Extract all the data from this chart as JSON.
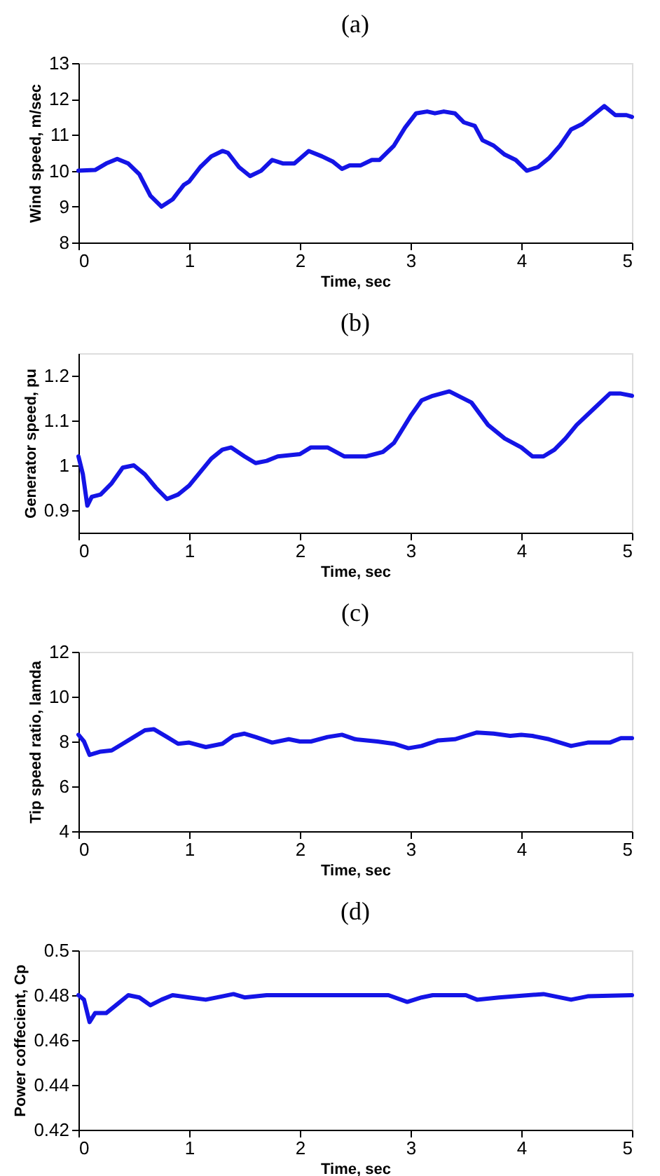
{
  "chart_data": [
    {
      "type": "line",
      "title": "(a)",
      "xlabel": "Time, sec",
      "ylabel": "Wind speed, m/sec",
      "xlim": [
        0,
        5
      ],
      "xticks": [
        0,
        1,
        2,
        3,
        4,
        5
      ],
      "ylim": [
        8,
        13
      ],
      "yticks": [
        8,
        9,
        10,
        11,
        12,
        13
      ],
      "grid": false,
      "series": [
        {
          "color": "#1414e6",
          "x": [
            0,
            0.15,
            0.25,
            0.35,
            0.45,
            0.55,
            0.65,
            0.75,
            0.85,
            0.95,
            1.0,
            1.1,
            1.2,
            1.3,
            1.35,
            1.45,
            1.55,
            1.65,
            1.75,
            1.85,
            1.95,
            2.08,
            2.2,
            2.3,
            2.38,
            2.45,
            2.55,
            2.65,
            2.72,
            2.85,
            2.95,
            3.05,
            3.15,
            3.22,
            3.3,
            3.4,
            3.48,
            3.58,
            3.65,
            3.75,
            3.85,
            3.95,
            4.05,
            4.15,
            4.25,
            4.35,
            4.45,
            4.55,
            4.65,
            4.75,
            4.85,
            4.95,
            5
          ],
          "values": [
            10,
            10.02,
            10.2,
            10.33,
            10.2,
            9.9,
            9.3,
            9.0,
            9.2,
            9.6,
            9.7,
            10.1,
            10.4,
            10.55,
            10.5,
            10.1,
            9.85,
            10.0,
            10.3,
            10.2,
            10.2,
            10.55,
            10.4,
            10.25,
            10.05,
            10.15,
            10.15,
            10.3,
            10.3,
            10.7,
            11.2,
            11.6,
            11.65,
            11.6,
            11.65,
            11.6,
            11.35,
            11.25,
            10.85,
            10.7,
            10.45,
            10.3,
            10.0,
            10.1,
            10.35,
            10.7,
            11.15,
            11.3,
            11.55,
            11.8,
            11.55,
            11.55,
            11.5
          ]
        }
      ]
    },
    {
      "type": "line",
      "title": "(b)",
      "xlabel": "Time, sec",
      "ylabel": "Generator speed, pu",
      "xlim": [
        0,
        5
      ],
      "xticks": [
        0,
        1,
        2,
        3,
        4,
        5
      ],
      "ylim": [
        0.85,
        1.25
      ],
      "yticks": [
        0.9,
        1,
        1.1,
        1.2
      ],
      "grid": false,
      "series": [
        {
          "color": "#1414e6",
          "x": [
            0,
            0.04,
            0.08,
            0.12,
            0.2,
            0.3,
            0.4,
            0.5,
            0.6,
            0.7,
            0.8,
            0.9,
            1.0,
            1.1,
            1.2,
            1.3,
            1.38,
            1.5,
            1.6,
            1.7,
            1.8,
            2.0,
            2.1,
            2.25,
            2.4,
            2.6,
            2.75,
            2.85,
            3.0,
            3.1,
            3.2,
            3.35,
            3.55,
            3.7,
            3.85,
            4.0,
            4.1,
            4.2,
            4.3,
            4.4,
            4.5,
            4.65,
            4.8,
            4.9,
            5
          ],
          "values": [
            1.02,
            0.98,
            0.91,
            0.93,
            0.935,
            0.96,
            0.995,
            1.0,
            0.98,
            0.95,
            0.925,
            0.935,
            0.955,
            0.985,
            1.015,
            1.035,
            1.04,
            1.02,
            1.005,
            1.01,
            1.02,
            1.025,
            1.04,
            1.04,
            1.02,
            1.02,
            1.03,
            1.05,
            1.11,
            1.145,
            1.155,
            1.165,
            1.14,
            1.09,
            1.06,
            1.04,
            1.02,
            1.02,
            1.035,
            1.06,
            1.09,
            1.125,
            1.16,
            1.16,
            1.155
          ]
        }
      ]
    },
    {
      "type": "line",
      "title": "(c)",
      "xlabel": "Time, sec",
      "ylabel": "Tip speed ratio, lamda",
      "xlim": [
        0,
        5
      ],
      "xticks": [
        0,
        1,
        2,
        3,
        4,
        5
      ],
      "ylim": [
        4,
        12
      ],
      "yticks": [
        4,
        6,
        8,
        10,
        12
      ],
      "grid": false,
      "series": [
        {
          "color": "#1414e6",
          "x": [
            0,
            0.05,
            0.1,
            0.2,
            0.3,
            0.4,
            0.5,
            0.6,
            0.68,
            0.8,
            0.9,
            1.0,
            1.15,
            1.3,
            1.4,
            1.5,
            1.6,
            1.75,
            1.9,
            2.0,
            2.1,
            2.25,
            2.38,
            2.5,
            2.7,
            2.85,
            2.98,
            3.1,
            3.25,
            3.4,
            3.5,
            3.6,
            3.75,
            3.9,
            4.0,
            4.1,
            4.25,
            4.45,
            4.6,
            4.8,
            4.9,
            5.0
          ],
          "values": [
            8.3,
            8.0,
            7.4,
            7.55,
            7.6,
            7.9,
            8.2,
            8.5,
            8.55,
            8.2,
            7.9,
            7.95,
            7.75,
            7.9,
            8.25,
            8.35,
            8.2,
            7.95,
            8.1,
            8.0,
            8.0,
            8.2,
            8.3,
            8.1,
            8.0,
            7.9,
            7.7,
            7.8,
            8.05,
            8.1,
            8.25,
            8.4,
            8.35,
            8.25,
            8.3,
            8.25,
            8.1,
            7.8,
            7.95,
            7.95,
            8.15,
            8.15
          ]
        }
      ]
    },
    {
      "type": "line",
      "title": "(d)",
      "xlabel": "Time, sec",
      "ylabel": "Power coffecient, Cp",
      "xlim": [
        0,
        5
      ],
      "xticks": [
        0,
        1,
        2,
        3,
        4,
        5
      ],
      "ylim": [
        0.42,
        0.5
      ],
      "yticks": [
        0.42,
        0.44,
        0.46,
        0.48,
        0.5
      ],
      "grid": false,
      "series": [
        {
          "color": "#1414e6",
          "x": [
            0,
            0.05,
            0.1,
            0.15,
            0.25,
            0.35,
            0.45,
            0.55,
            0.65,
            0.75,
            0.85,
            1.0,
            1.15,
            1.3,
            1.4,
            1.5,
            1.7,
            2.0,
            2.4,
            2.8,
            2.97,
            3.1,
            3.2,
            3.5,
            3.6,
            3.8,
            4.2,
            4.45,
            4.6,
            5
          ],
          "values": [
            0.48,
            0.478,
            0.468,
            0.472,
            0.472,
            0.476,
            0.48,
            0.479,
            0.4755,
            0.478,
            0.48,
            0.479,
            0.478,
            0.4795,
            0.4805,
            0.479,
            0.48,
            0.48,
            0.48,
            0.48,
            0.477,
            0.479,
            0.48,
            0.48,
            0.478,
            0.479,
            0.4805,
            0.478,
            0.4795,
            0.48
          ]
        }
      ]
    }
  ]
}
